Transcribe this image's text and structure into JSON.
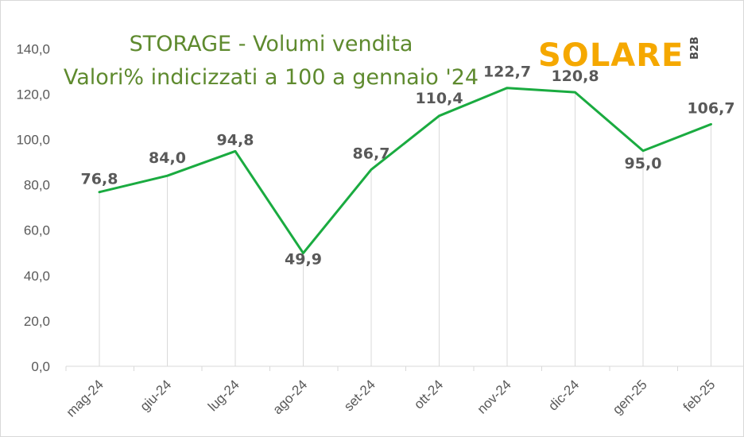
{
  "header": {
    "title_line1": "STORAGE - Volumi vendita",
    "title_line2": "Valori% indicizzati a 100 a gennaio '24"
  },
  "logo": {
    "text": "SOLARE",
    "sub": "B2B",
    "color": "#f5a800"
  },
  "chart_data": {
    "type": "line",
    "title": "STORAGE - Volumi vendita",
    "subtitle": "Valori% indicizzati a 100 a gennaio '24",
    "categories": [
      "mag-24",
      "giu-24",
      "lug-24",
      "ago-24",
      "set-24",
      "ott-24",
      "nov-24",
      "dic-24",
      "gen-25",
      "feb-25"
    ],
    "series": [
      {
        "values": [
          76.8,
          84.0,
          94.8,
          49.9,
          86.7,
          110.4,
          122.7,
          120.8,
          95.0,
          106.7
        ],
        "labels": [
          "76,8",
          "84,0",
          "94,8",
          "49,9",
          "86,7",
          "110,4",
          "122,7",
          "120,8",
          "95,0",
          "106,7"
        ],
        "color": "#1aab40"
      }
    ],
    "ylim": [
      0,
      140
    ],
    "yticks": [
      "0,0",
      "20,0",
      "40,0",
      "60,0",
      "80,0",
      "100,0",
      "120,0",
      "140,0"
    ],
    "grid": "vertical drop lines",
    "legend": "none"
  }
}
